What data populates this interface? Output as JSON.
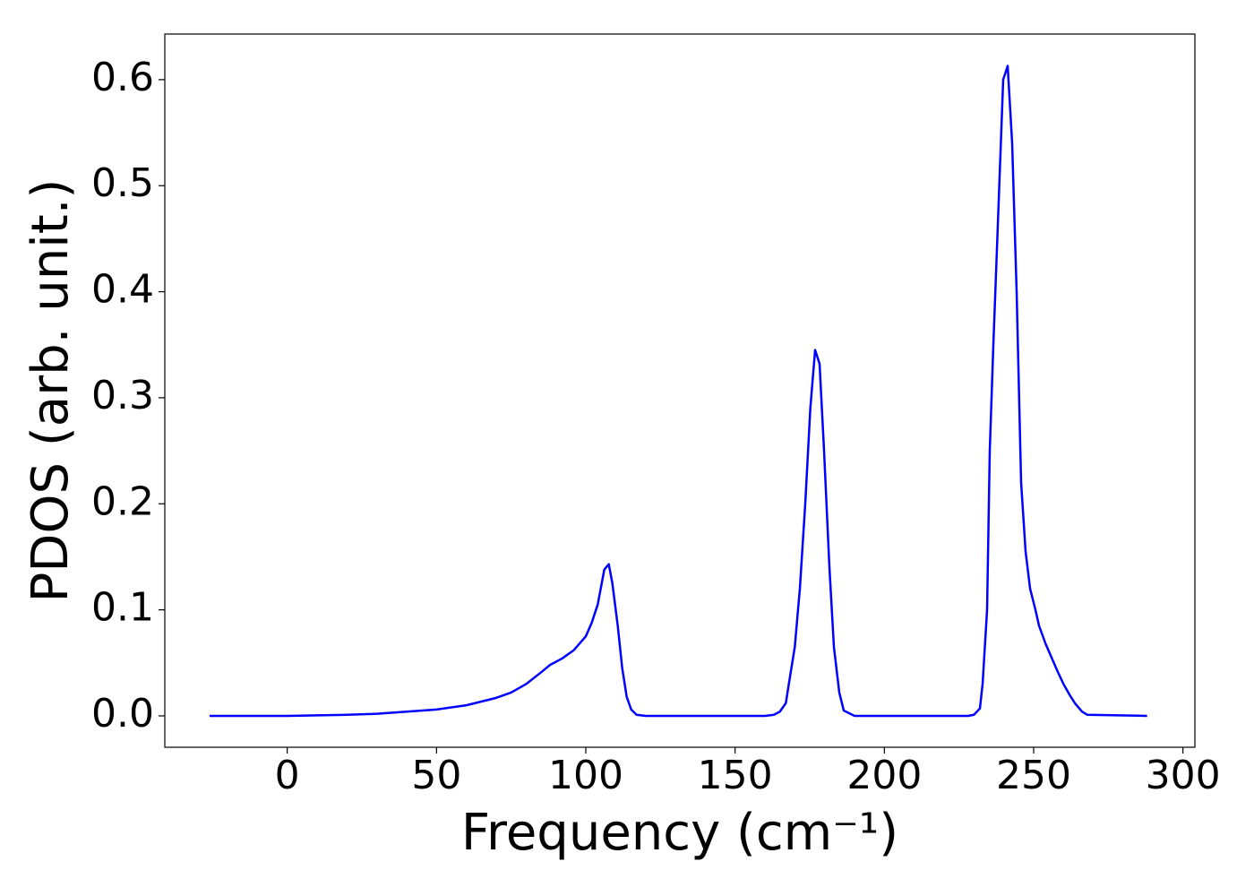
{
  "chart_data": {
    "type": "line",
    "x_label": "Frequency (cm⁻¹)",
    "y_label": "PDOS (arb. unit.)",
    "series": [
      {
        "color": "#0000ff",
        "x": [
          -26,
          0,
          10,
          20,
          30,
          40,
          50,
          60,
          70,
          75,
          80,
          85,
          88,
          92,
          96,
          100,
          102,
          104,
          106.2,
          107.7,
          108.9,
          110.7,
          112.2,
          113.7,
          115.2,
          117,
          120,
          160,
          163,
          165,
          167,
          168,
          170,
          171.7,
          173.5,
          175.2,
          176.8,
          178.3,
          179.8,
          181.6,
          183.1,
          184.9,
          186.4,
          190,
          228,
          230,
          232,
          232.9,
          234.4,
          235.3,
          236.5,
          237.7,
          239.8,
          241.3,
          242.8,
          244.3,
          245.8,
          247.3,
          248.8,
          250.6,
          251.8,
          254,
          256,
          258,
          260,
          262,
          263.8,
          266.2,
          268,
          288
        ],
        "values": [
          0,
          0,
          0.0005,
          0.001,
          0.002,
          0.004,
          0.006,
          0.01,
          0.017,
          0.022,
          0.03,
          0.041,
          0.048,
          0.054,
          0.062,
          0.075,
          0.088,
          0.105,
          0.138,
          0.143,
          0.125,
          0.085,
          0.045,
          0.018,
          0.006,
          0.001,
          0,
          0,
          0.001,
          0.004,
          0.012,
          0.03,
          0.065,
          0.12,
          0.2,
          0.29,
          0.345,
          0.332,
          0.25,
          0.14,
          0.065,
          0.022,
          0.005,
          0,
          0,
          0.001,
          0.007,
          0.03,
          0.1,
          0.25,
          0.35,
          0.44,
          0.6,
          0.613,
          0.54,
          0.4,
          0.22,
          0.155,
          0.12,
          0.1,
          0.085,
          0.068,
          0.055,
          0.042,
          0.03,
          0.02,
          0.012,
          0.004,
          0.001,
          0
        ]
      }
    ],
    "xlim": [
      -41,
      304
    ],
    "ylim": [
      -0.0296,
      0.643
    ],
    "xticks": [
      0,
      50,
      100,
      150,
      200,
      250,
      300
    ],
    "yticks": [
      {
        "value": 0,
        "label": "0.0"
      },
      0.1,
      0.2,
      0.3,
      0.4,
      0.5,
      0.6
    ]
  }
}
